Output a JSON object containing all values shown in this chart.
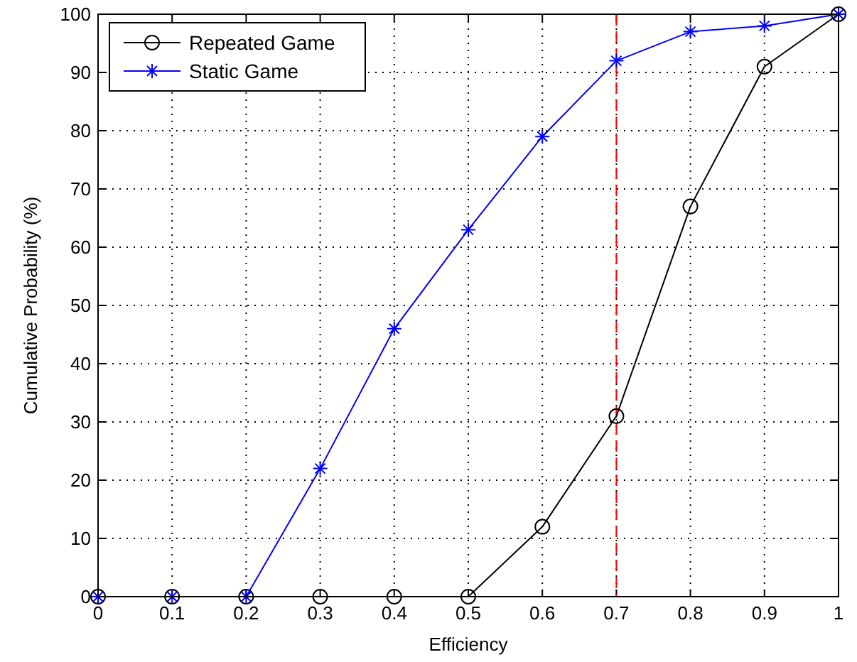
{
  "chart_data": {
    "type": "line",
    "xlabel": "Efficiency",
    "ylabel": "Cumulative Probability (%)",
    "x": [
      0,
      0.1,
      0.2,
      0.3,
      0.4,
      0.5,
      0.6,
      0.7,
      0.8,
      0.9,
      1
    ],
    "series": [
      {
        "name": "Repeated Game",
        "color": "#000000",
        "marker": "circle",
        "values": [
          0,
          0,
          0,
          0,
          0,
          0,
          12,
          31,
          67,
          91,
          100
        ]
      },
      {
        "name": "Static Game",
        "color": "#0000ff",
        "marker": "cross",
        "values": [
          0,
          0,
          0,
          22,
          46,
          63,
          79,
          92,
          97,
          98,
          100
        ]
      }
    ],
    "xlim": [
      0,
      1
    ],
    "xticks": [
      0,
      0.1,
      0.2,
      0.3,
      0.4,
      0.5,
      0.6,
      0.7,
      0.8,
      0.9,
      1
    ],
    "ylim": [
      0,
      100
    ],
    "yticks": [
      0,
      10,
      20,
      30,
      40,
      50,
      60,
      70,
      80,
      90,
      100
    ],
    "grid": true,
    "legend": "top left",
    "line_style": "solid",
    "ref_lines": [
      {
        "axis": "x",
        "value": 0.7,
        "color": "#ff0000",
        "line_style": "dashed"
      }
    ]
  }
}
